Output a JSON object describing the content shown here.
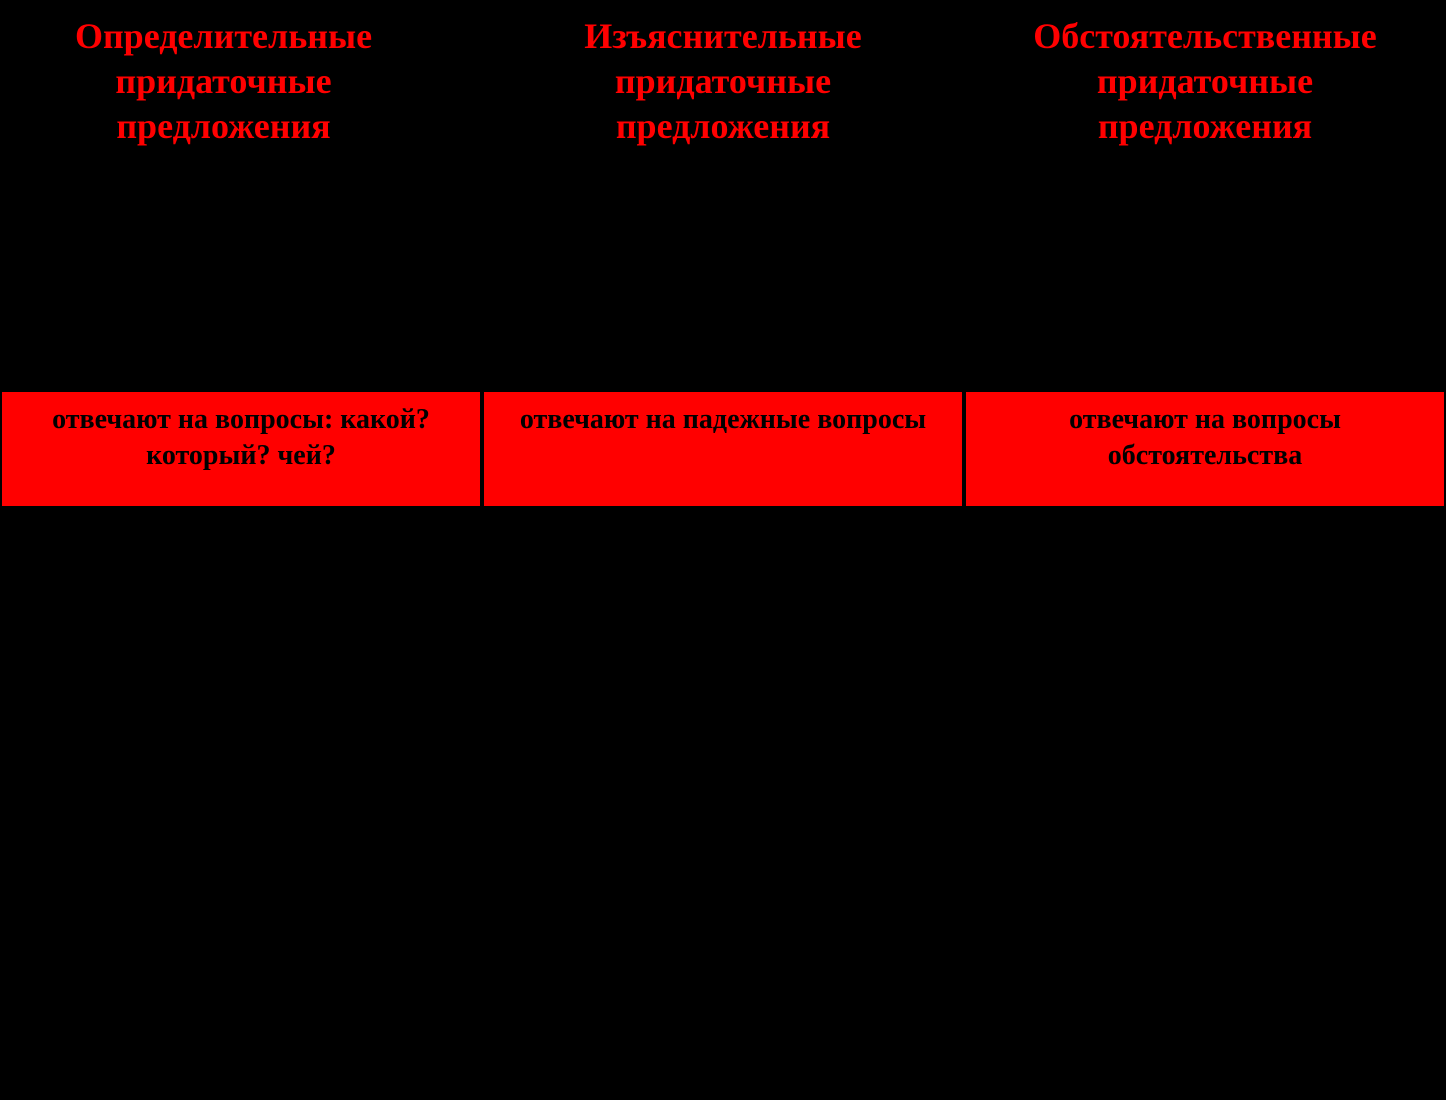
{
  "table": {
    "type": "table",
    "columns_count": 3,
    "background_color": "#000000",
    "header_text_color": "#ff0000",
    "questions_background_color": "#ff0000",
    "questions_text_color": "#000000",
    "header_fontsize": 36,
    "questions_fontsize": 28,
    "font_family": "Georgia, Times New Roman, serif",
    "font_weight": "bold",
    "border_color": "#000000",
    "border_width": 2,
    "columns": [
      {
        "header": "Определительные придаточные предложения",
        "questions": "отвечают на вопросы: какой? который? чей?"
      },
      {
        "header": "Изъяснительные придаточные предложения",
        "questions": "отвечают на падежные вопросы"
      },
      {
        "header": "Обстоятельственные придаточные предложения",
        "questions": "отвечают на вопросы обстоятельства"
      }
    ]
  }
}
